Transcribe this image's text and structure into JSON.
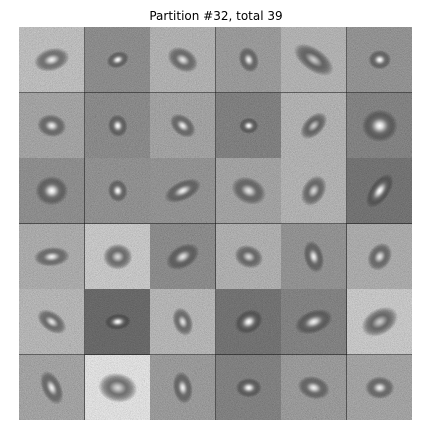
{
  "title": "Partition #32, total 39",
  "grid": {
    "rows": 6,
    "cols": 6
  },
  "tiles": [
    {
      "n": 0.35,
      "bg": "#2a2a2a",
      "a": 0.55,
      "b": 0.35,
      "r": -15,
      "bright": 0.95
    },
    {
      "n": 0.18,
      "bg": "#151515",
      "a": 0.35,
      "b": 0.25,
      "r": -20,
      "bright": 1.0
    },
    {
      "n": 0.3,
      "bg": "#222222",
      "a": 0.5,
      "b": 0.35,
      "r": 30,
      "bright": 0.9
    },
    {
      "n": 0.22,
      "bg": "#1a1a1a",
      "a": 0.4,
      "b": 0.3,
      "r": 70,
      "bright": 0.95
    },
    {
      "n": 0.3,
      "bg": "#262626",
      "a": 0.7,
      "b": 0.35,
      "r": 35,
      "bright": 0.8
    },
    {
      "n": 0.2,
      "bg": "#161616",
      "a": 0.35,
      "b": 0.3,
      "r": 0,
      "bright": 1.0
    },
    {
      "n": 0.25,
      "bg": "#1e1e1e",
      "a": 0.45,
      "b": 0.35,
      "r": 10,
      "bright": 0.95
    },
    {
      "n": 0.18,
      "bg": "#111111",
      "a": 0.35,
      "b": 0.3,
      "r": 80,
      "bright": 1.0
    },
    {
      "n": 0.25,
      "bg": "#1b1b1b",
      "a": 0.45,
      "b": 0.3,
      "r": 40,
      "bright": 0.95
    },
    {
      "n": 0.15,
      "bg": "#101010",
      "a": 0.3,
      "b": 0.25,
      "r": 0,
      "bright": 1.0
    },
    {
      "n": 0.3,
      "bg": "#252525",
      "a": 0.5,
      "b": 0.3,
      "r": -45,
      "bright": 0.8
    },
    {
      "n": 0.15,
      "bg": "#151515",
      "a": 0.55,
      "b": 0.5,
      "r": 0,
      "bright": 1.0
    },
    {
      "n": 0.18,
      "bg": "#181818",
      "a": 0.5,
      "b": 0.45,
      "r": 0,
      "bright": 1.0
    },
    {
      "n": 0.2,
      "bg": "#121212",
      "a": 0.35,
      "b": 0.3,
      "r": 80,
      "bright": 1.0
    },
    {
      "n": 0.2,
      "bg": "#161616",
      "a": 0.6,
      "b": 0.3,
      "r": -25,
      "bright": 0.95
    },
    {
      "n": 0.25,
      "bg": "#1c1c1c",
      "a": 0.55,
      "b": 0.4,
      "r": 25,
      "bright": 0.9
    },
    {
      "n": 0.3,
      "bg": "#262626",
      "a": 0.5,
      "b": 0.35,
      "r": -60,
      "bright": 0.85
    },
    {
      "n": 0.12,
      "bg": "#0d0d0d",
      "a": 0.6,
      "b": 0.3,
      "r": -55,
      "bright": 1.0
    },
    {
      "n": 0.28,
      "bg": "#202020",
      "a": 0.55,
      "b": 0.3,
      "r": -5,
      "bright": 0.95
    },
    {
      "n": 0.4,
      "bg": "#2b2b2b",
      "a": 0.45,
      "b": 0.4,
      "r": 0,
      "bright": 0.85
    },
    {
      "n": 0.18,
      "bg": "#131313",
      "a": 0.55,
      "b": 0.35,
      "r": -30,
      "bright": 0.9
    },
    {
      "n": 0.3,
      "bg": "#1e1e1e",
      "a": 0.45,
      "b": 0.35,
      "r": 20,
      "bright": 0.85
    },
    {
      "n": 0.2,
      "bg": "#151515",
      "a": 0.5,
      "b": 0.3,
      "r": 75,
      "bright": 0.95
    },
    {
      "n": 0.28,
      "bg": "#202020",
      "a": 0.45,
      "b": 0.35,
      "r": -60,
      "bright": 0.9
    },
    {
      "n": 0.32,
      "bg": "#242424",
      "a": 0.5,
      "b": 0.3,
      "r": 35,
      "bright": 0.9
    },
    {
      "n": 0.1,
      "bg": "#0a0a0a",
      "a": 0.4,
      "b": 0.25,
      "r": -5,
      "bright": 1.0
    },
    {
      "n": 0.32,
      "bg": "#232323",
      "a": 0.45,
      "b": 0.3,
      "r": 70,
      "bright": 0.9
    },
    {
      "n": 0.12,
      "bg": "#0c0c0c",
      "a": 0.45,
      "b": 0.35,
      "r": -30,
      "bright": 1.0
    },
    {
      "n": 0.15,
      "bg": "#141414",
      "a": 0.6,
      "b": 0.35,
      "r": -20,
      "bright": 0.95
    },
    {
      "n": 0.4,
      "bg": "#2c2c2c",
      "a": 0.6,
      "b": 0.4,
      "r": -30,
      "bright": 0.8
    },
    {
      "n": 0.25,
      "bg": "#1d1d1d",
      "a": 0.55,
      "b": 0.3,
      "r": 65,
      "bright": 0.95
    },
    {
      "n": 0.55,
      "bg": "#353535",
      "a": 0.6,
      "b": 0.45,
      "r": 10,
      "bright": 0.85
    },
    {
      "n": 0.22,
      "bg": "#1a1a1a",
      "a": 0.5,
      "b": 0.3,
      "r": 80,
      "bright": 0.95
    },
    {
      "n": 0.15,
      "bg": "#121212",
      "a": 0.4,
      "b": 0.3,
      "r": 0,
      "bright": 1.0
    },
    {
      "n": 0.22,
      "bg": "#1a1a1a",
      "a": 0.5,
      "b": 0.35,
      "r": 15,
      "bright": 0.95
    },
    {
      "n": 0.25,
      "bg": "#1d1d1d",
      "a": 0.45,
      "b": 0.35,
      "r": 0,
      "bright": 0.95
    }
  ]
}
